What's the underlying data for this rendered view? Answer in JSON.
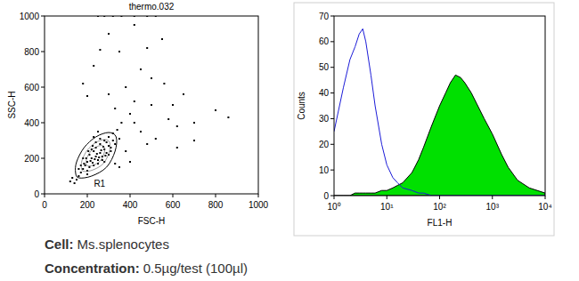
{
  "chart_data": [
    {
      "type": "scatter",
      "title": "thermo.032",
      "x_label": "FSC-H",
      "y_label": "SSC-H",
      "color": "#000000",
      "marker": "square",
      "xlim": [
        0,
        1000
      ],
      "xticks": [
        0,
        200,
        400,
        600,
        800,
        1000
      ],
      "ylim": [
        0,
        1000
      ],
      "yticks": [
        0,
        200,
        400,
        600,
        800,
        1000
      ],
      "x": [
        200,
        220,
        240,
        260,
        280,
        300,
        230,
        250,
        270,
        210,
        190,
        180,
        170,
        160,
        150,
        240,
        260,
        280,
        300,
        320,
        310,
        290,
        270,
        250,
        230,
        210,
        200,
        225,
        245,
        265,
        285,
        235,
        255,
        275,
        215,
        195,
        185,
        205,
        225,
        320,
        340,
        330,
        290,
        260,
        240,
        220,
        180,
        170,
        300,
        310,
        140,
        130,
        120,
        160,
        200,
        280,
        350,
        360,
        250,
        230,
        400,
        420,
        380,
        450,
        500,
        350,
        300,
        420,
        250,
        280,
        320,
        360,
        420,
        480,
        520,
        550,
        600,
        620,
        580,
        650,
        700,
        620,
        800,
        860,
        450,
        480,
        520,
        400,
        380,
        200,
        180,
        230,
        260,
        330,
        300,
        420,
        500,
        560,
        350,
        330,
        700,
        480
      ],
      "values": [
        180,
        200,
        210,
        230,
        250,
        270,
        240,
        190,
        210,
        220,
        160,
        140,
        120,
        100,
        80,
        260,
        280,
        300,
        320,
        300,
        260,
        230,
        190,
        170,
        160,
        150,
        130,
        175,
        225,
        245,
        215,
        195,
        205,
        265,
        185,
        200,
        170,
        240,
        270,
        340,
        360,
        280,
        290,
        310,
        290,
        250,
        200,
        160,
        220,
        240,
        60,
        90,
        70,
        140,
        110,
        180,
        310,
        400,
        350,
        320,
        450,
        520,
        600,
        700,
        650,
        800,
        900,
        950,
        1000,
        1000,
        1000,
        1000,
        1000,
        1000,
        1000,
        870,
        500,
        380,
        420,
        560,
        300,
        260,
        470,
        430,
        350,
        280,
        310,
        180,
        240,
        550,
        620,
        720,
        810,
        480,
        560,
        400,
        500,
        620,
        150,
        170,
        400,
        820
      ],
      "gate": {
        "label": "R1",
        "x": [
          160,
          220,
          290,
          330,
          335,
          300,
          240,
          185,
          150,
          145
        ],
        "y": [
          90,
          100,
          150,
          240,
          320,
          345,
          320,
          260,
          180,
          120
        ]
      }
    },
    {
      "type": "line",
      "x_label": "FL1-H",
      "y_label": "Counts",
      "log": "x",
      "xlim": [
        1,
        10000
      ],
      "xticks": [
        {
          "value": 1,
          "label": "10⁰"
        },
        {
          "value": 10,
          "label": "10¹"
        },
        {
          "value": 100,
          "label": "10²"
        },
        {
          "value": 1000,
          "label": "10³"
        },
        {
          "value": 10000,
          "label": "10⁴"
        }
      ],
      "ylim": [
        0,
        70
      ],
      "yticks": [
        0,
        10,
        20,
        30,
        40,
        50,
        60,
        70
      ],
      "x": [
        1,
        1.5,
        2,
        2.5,
        3,
        3.5,
        4,
        5,
        6,
        8,
        10,
        13,
        16,
        20,
        30,
        40,
        50,
        70,
        100,
        130,
        160,
        200,
        250,
        300,
        400,
        500,
        700,
        1000,
        1500,
        2000,
        3000,
        5000,
        10000
      ],
      "series": [
        {
          "type": "area",
          "color": "#00e000",
          "values": [
            0,
            0,
            0,
            1,
            1,
            1,
            1,
            1,
            1,
            2,
            2,
            3,
            4,
            5,
            9,
            14,
            19,
            27,
            35,
            40,
            44,
            47,
            46,
            44,
            40,
            36,
            30,
            24,
            16,
            11,
            6,
            3,
            1
          ]
        },
        {
          "type": "line",
          "color": "#1c1cd8",
          "line_style": "solid",
          "values": [
            25,
            42,
            53,
            58,
            63,
            65,
            60,
            47,
            35,
            20,
            12,
            7,
            5,
            3,
            2,
            1,
            1,
            0,
            0,
            0,
            0,
            0,
            0,
            0,
            0,
            0,
            0,
            0,
            0,
            0,
            0,
            0,
            0
          ]
        }
      ]
    }
  ],
  "captions": [
    {
      "label": "Cell:",
      "text": "Ms.splenocytes"
    },
    {
      "label": "Concentration:",
      "text": "0.5µg/test (100µl)"
    }
  ]
}
